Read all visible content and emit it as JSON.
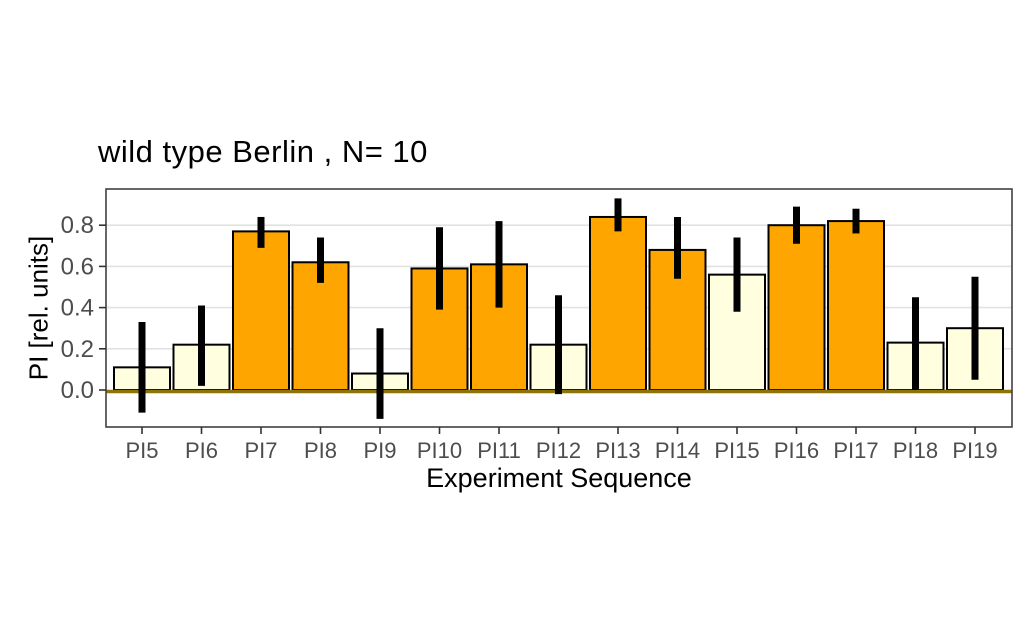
{
  "chart_data": {
    "type": "bar",
    "title": "wild type Berlin , N= 10",
    "xlabel": "Experiment Sequence",
    "ylabel": "PI [rel. units]",
    "categories": [
      "PI5",
      "PI6",
      "PI7",
      "PI8",
      "PI9",
      "PI10",
      "PI11",
      "PI12",
      "PI13",
      "PI14",
      "PI15",
      "PI16",
      "PI17",
      "PI18",
      "PI19"
    ],
    "values": [
      0.11,
      0.22,
      0.77,
      0.62,
      0.08,
      0.59,
      0.61,
      0.22,
      0.84,
      0.68,
      0.56,
      0.8,
      0.82,
      0.23,
      0.3
    ],
    "error_low": [
      -0.11,
      0.02,
      0.69,
      0.52,
      -0.14,
      0.39,
      0.4,
      -0.02,
      0.77,
      0.54,
      0.38,
      0.71,
      0.76,
      0.0,
      0.05
    ],
    "error_high": [
      0.33,
      0.41,
      0.84,
      0.74,
      0.3,
      0.79,
      0.82,
      0.46,
      0.93,
      0.84,
      0.74,
      0.89,
      0.88,
      0.45,
      0.55
    ],
    "bar_colors": [
      "cream",
      "cream",
      "orange",
      "orange",
      "cream",
      "orange",
      "orange",
      "cream",
      "orange",
      "orange",
      "cream",
      "orange",
      "orange",
      "cream",
      "cream"
    ],
    "ytick_labels": [
      "0.0",
      "0.2",
      "0.4",
      "0.6",
      "0.8"
    ],
    "ytick_values": [
      0.0,
      0.2,
      0.4,
      0.6,
      0.8
    ],
    "ylim": [
      -0.18,
      0.98
    ],
    "grid": "horizontal major gridlines only",
    "legend_position": "none",
    "colors": {
      "orange_bar": "#FFA500",
      "cream_bar": "#FFFFE0",
      "bar_border": "#000000",
      "error_bar": "#000000",
      "zero_line": "#8C740A",
      "gridline": "#E2E2E2",
      "panel_border": "#404040",
      "tick_mark": "#333333",
      "tick_text": "#4D4D4D",
      "title_text": "#000000",
      "background": "#FFFFFF"
    }
  }
}
